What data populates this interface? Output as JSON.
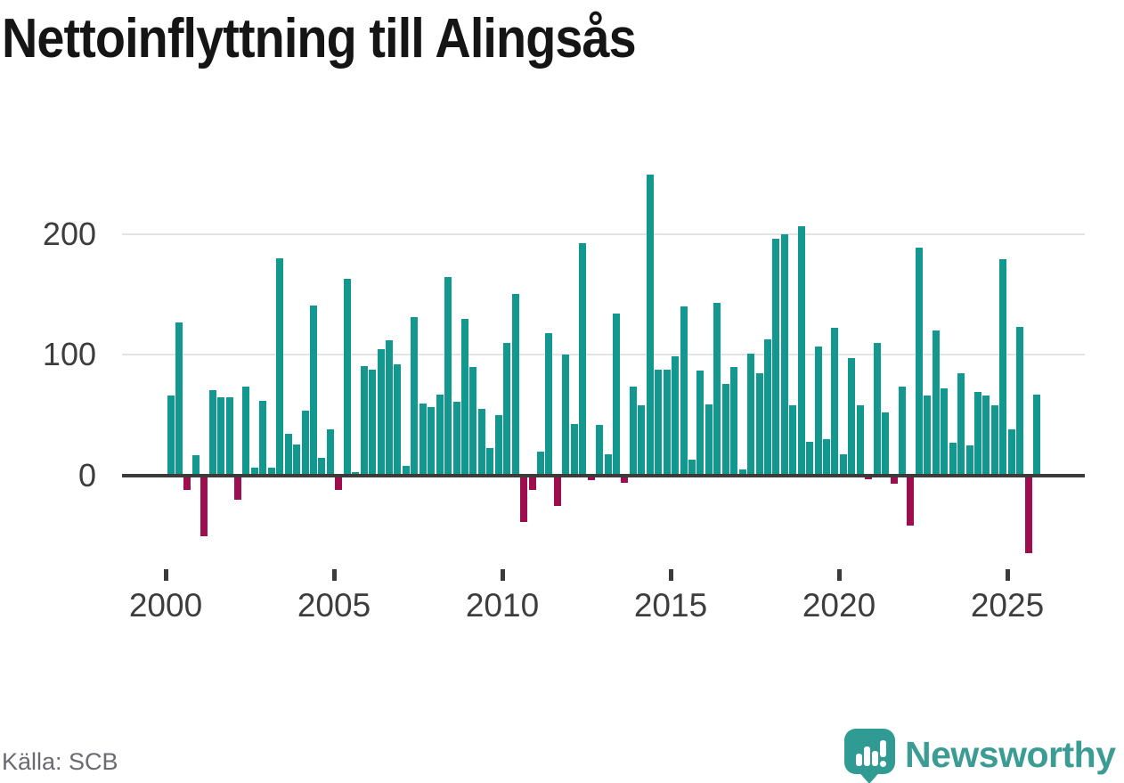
{
  "title": "Nettoinflyttning till Alingsås",
  "source": "Källa: SCB",
  "branding": {
    "logo_text": "Newsworthy",
    "logo_icon": "bar-chart-speech-bubble-icon"
  },
  "colors": {
    "positive": "#13988f",
    "negative": "#9e0e4e",
    "axis_line": "#3b3b3b",
    "gridline": "#e4e4e4",
    "tick_label": "#3d3d3d",
    "source_text": "#6a6a72",
    "brand_teal": "#3b9c94",
    "title_text": "#151515"
  },
  "chart_data": {
    "type": "bar",
    "title": "Nettoinflyttning till Alingsås",
    "frequency": "quarterly",
    "start_period": "2000 Q1",
    "end_period": "2025 Q4",
    "x_tick_labels": [
      "2000",
      "2005",
      "2010",
      "2015",
      "2020",
      "2025"
    ],
    "y_ticks": [
      0,
      100,
      200
    ],
    "y_tick_labels": [
      "0",
      "100",
      "200"
    ],
    "ylim": [
      -75,
      265
    ],
    "grid": "horizontal",
    "legend": "none",
    "positive_color": "#13988f",
    "negative_color": "#9e0e4e",
    "values": [
      66,
      127,
      -12,
      17,
      -50,
      71,
      65,
      65,
      -20,
      74,
      7,
      62,
      7,
      180,
      35,
      26,
      54,
      141,
      15,
      38,
      -12,
      163,
      3,
      91,
      88,
      105,
      112,
      92,
      8,
      131,
      60,
      57,
      67,
      164,
      61,
      130,
      90,
      55,
      23,
      50,
      110,
      150,
      -38,
      -12,
      20,
      118,
      -25,
      100,
      43,
      192,
      -4,
      42,
      18,
      134,
      -6,
      74,
      58,
      249,
      88,
      88,
      99,
      140,
      13,
      87,
      59,
      143,
      76,
      90,
      5,
      101,
      85,
      113,
      196,
      200,
      58,
      206,
      28,
      107,
      30,
      122,
      18,
      97,
      58,
      -3,
      110,
      52,
      -7,
      74,
      -41,
      189,
      66,
      120,
      72,
      27,
      85,
      25,
      69,
      66,
      58,
      179,
      38,
      123,
      -64,
      67
    ]
  }
}
